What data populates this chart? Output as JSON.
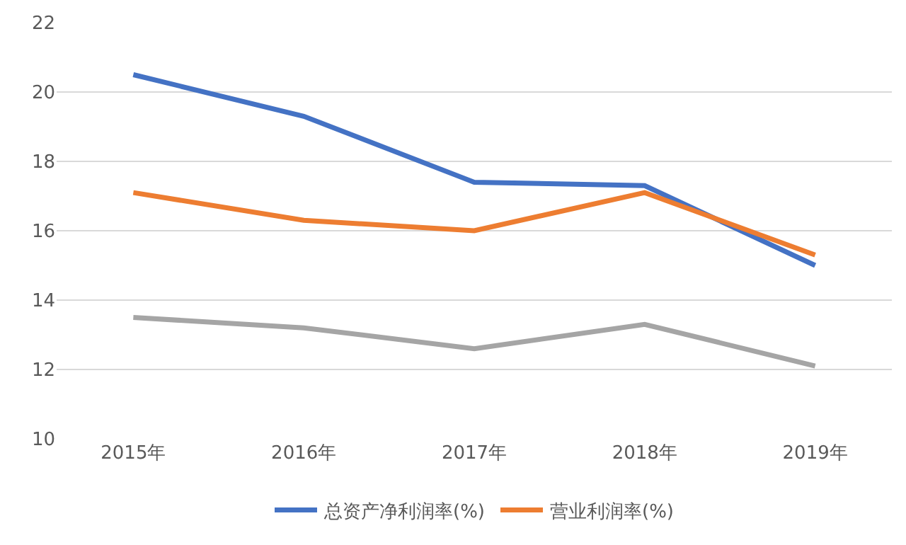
{
  "chart_data": {
    "type": "line",
    "categories": [
      "2015年",
      "2016年",
      "2017年",
      "2018年",
      "2019年"
    ],
    "series": [
      {
        "name": "总资产净利润率(%)",
        "color": "#4472c4",
        "values": [
          20.5,
          19.3,
          17.4,
          17.3,
          15.0
        ]
      },
      {
        "name": "营业利润率(%)",
        "color": "#ed7d31",
        "values": [
          17.1,
          16.3,
          16.0,
          17.1,
          15.3
        ]
      },
      {
        "color": "#a5a5a5",
        "values": [
          13.5,
          13.2,
          12.6,
          13.3,
          12.1
        ]
      }
    ],
    "ylim": [
      10,
      22
    ],
    "yticks": [
      10,
      12,
      14,
      16,
      18,
      20,
      22
    ],
    "grid": "y",
    "legend": "bottom",
    "marker": "none",
    "line_style": "solid"
  }
}
